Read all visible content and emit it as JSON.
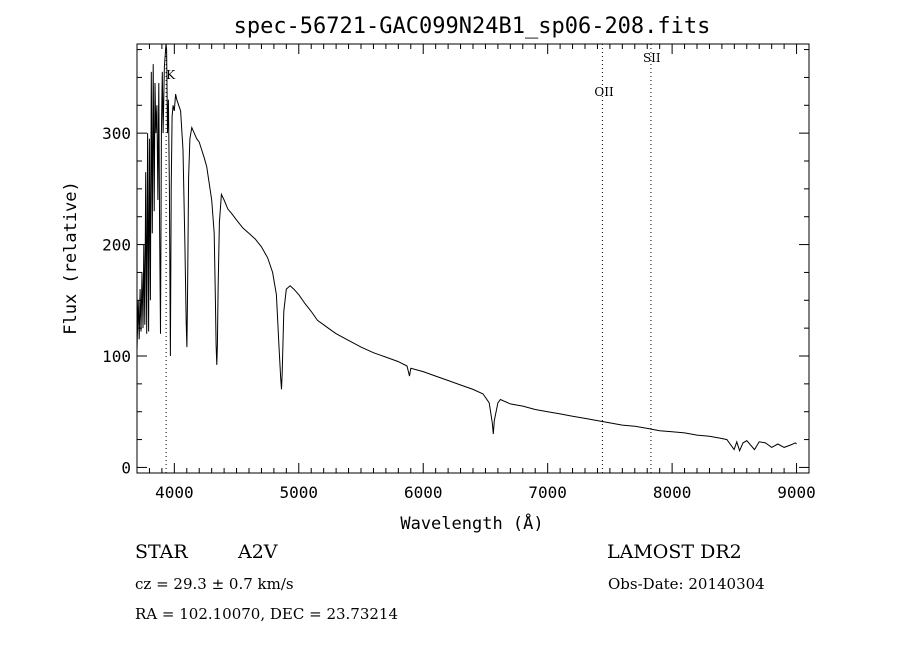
{
  "chart_data": {
    "type": "line",
    "title": "spec-56721-GAC099N24B1_sp06-208.fits",
    "xlabel": "Wavelength (Å)",
    "ylabel": "Flux (relative)",
    "xlim": [
      3700,
      9100
    ],
    "ylim": [
      -5,
      380
    ],
    "xticks": [
      "4000",
      "5000",
      "6000",
      "7000",
      "8000",
      "9000"
    ],
    "yticks": [
      "0",
      "100",
      "200",
      "300"
    ],
    "grid": false,
    "series": [
      {
        "points": [
          [
            3700,
            105
          ],
          [
            3710,
            150
          ],
          [
            3718,
            115
          ],
          [
            3725,
            160
          ],
          [
            3732,
            122
          ],
          [
            3740,
            175
          ],
          [
            3748,
            125
          ],
          [
            3755,
            200
          ],
          [
            3763,
            128
          ],
          [
            3770,
            265
          ],
          [
            3778,
            120
          ],
          [
            3785,
            300
          ],
          [
            3793,
            122
          ],
          [
            3800,
            295
          ],
          [
            3808,
            150
          ],
          [
            3815,
            355
          ],
          [
            3823,
            210
          ],
          [
            3830,
            362
          ],
          [
            3838,
            230
          ],
          [
            3845,
            345
          ],
          [
            3852,
            300
          ],
          [
            3860,
            325
          ],
          [
            3868,
            240
          ],
          [
            3875,
            345
          ],
          [
            3882,
            215
          ],
          [
            3889,
            120
          ],
          [
            3896,
            300
          ],
          [
            3903,
            355
          ],
          [
            3910,
            300
          ],
          [
            3920,
            360
          ],
          [
            3933,
            380
          ],
          [
            3938,
            375
          ],
          [
            3945,
            300
          ],
          [
            3952,
            330
          ],
          [
            3960,
            250
          ],
          [
            3968,
            100
          ],
          [
            3975,
            250
          ],
          [
            3982,
            315
          ],
          [
            3990,
            325
          ],
          [
            4000,
            320
          ],
          [
            4010,
            335
          ],
          [
            4020,
            330
          ],
          [
            4035,
            325
          ],
          [
            4050,
            320
          ],
          [
            4070,
            285
          ],
          [
            4085,
            200
          ],
          [
            4095,
            130
          ],
          [
            4101,
            108
          ],
          [
            4107,
            160
          ],
          [
            4115,
            260
          ],
          [
            4125,
            295
          ],
          [
            4140,
            305
          ],
          [
            4160,
            300
          ],
          [
            4180,
            295
          ],
          [
            4200,
            292
          ],
          [
            4220,
            285
          ],
          [
            4240,
            278
          ],
          [
            4260,
            270
          ],
          [
            4280,
            255
          ],
          [
            4300,
            240
          ],
          [
            4320,
            210
          ],
          [
            4330,
            150
          ],
          [
            4336,
            110
          ],
          [
            4341,
            92
          ],
          [
            4346,
            110
          ],
          [
            4352,
            160
          ],
          [
            4362,
            220
          ],
          [
            4378,
            245
          ],
          [
            4400,
            240
          ],
          [
            4430,
            232
          ],
          [
            4460,
            228
          ],
          [
            4500,
            222
          ],
          [
            4550,
            215
          ],
          [
            4600,
            210
          ],
          [
            4650,
            205
          ],
          [
            4700,
            198
          ],
          [
            4750,
            188
          ],
          [
            4790,
            175
          ],
          [
            4820,
            155
          ],
          [
            4840,
            110
          ],
          [
            4855,
            80
          ],
          [
            4861,
            70
          ],
          [
            4867,
            85
          ],
          [
            4880,
            140
          ],
          [
            4900,
            160
          ],
          [
            4930,
            163
          ],
          [
            4960,
            160
          ],
          [
            5000,
            155
          ],
          [
            5050,
            147
          ],
          [
            5100,
            140
          ],
          [
            5150,
            132
          ],
          [
            5200,
            128
          ],
          [
            5250,
            124
          ],
          [
            5300,
            120
          ],
          [
            5400,
            114
          ],
          [
            5500,
            108
          ],
          [
            5600,
            103
          ],
          [
            5700,
            99
          ],
          [
            5800,
            95
          ],
          [
            5870,
            91
          ],
          [
            5890,
            82
          ],
          [
            5900,
            89
          ],
          [
            6000,
            86
          ],
          [
            6100,
            82
          ],
          [
            6200,
            78
          ],
          [
            6300,
            74
          ],
          [
            6400,
            70
          ],
          [
            6480,
            66
          ],
          [
            6530,
            58
          ],
          [
            6555,
            40
          ],
          [
            6563,
            30
          ],
          [
            6571,
            42
          ],
          [
            6600,
            58
          ],
          [
            6620,
            61
          ],
          [
            6700,
            57
          ],
          [
            6800,
            55
          ],
          [
            6900,
            52
          ],
          [
            7000,
            50
          ],
          [
            7100,
            48
          ],
          [
            7200,
            46
          ],
          [
            7300,
            44
          ],
          [
            7400,
            42
          ],
          [
            7500,
            40
          ],
          [
            7600,
            38
          ],
          [
            7700,
            37
          ],
          [
            7800,
            35
          ],
          [
            7900,
            33
          ],
          [
            8000,
            32
          ],
          [
            8100,
            31
          ],
          [
            8200,
            29
          ],
          [
            8300,
            28
          ],
          [
            8400,
            26
          ],
          [
            8440,
            25
          ],
          [
            8498,
            16
          ],
          [
            8520,
            23
          ],
          [
            8542,
            15
          ],
          [
            8570,
            22
          ],
          [
            8600,
            24
          ],
          [
            8662,
            16
          ],
          [
            8700,
            23
          ],
          [
            8750,
            22
          ],
          [
            8800,
            18
          ],
          [
            8850,
            21
          ],
          [
            8900,
            18
          ],
          [
            8950,
            20
          ],
          [
            8990,
            22
          ],
          [
            9000,
            21
          ]
        ]
      }
    ],
    "lines": [
      {
        "x": 3934,
        "label": "K"
      },
      {
        "x": 7440,
        "label": "OII"
      },
      {
        "x": 7830,
        "label": "SII"
      }
    ]
  },
  "info": {
    "object_type": "STAR",
    "subclass": "A2V",
    "survey": "LAMOST DR2",
    "cz": "cz = 29.3 ± 0.7 km/s",
    "obs_date": "Obs-Date: 20140304",
    "coords": "RA = 102.10070, DEC =  23.73214"
  }
}
